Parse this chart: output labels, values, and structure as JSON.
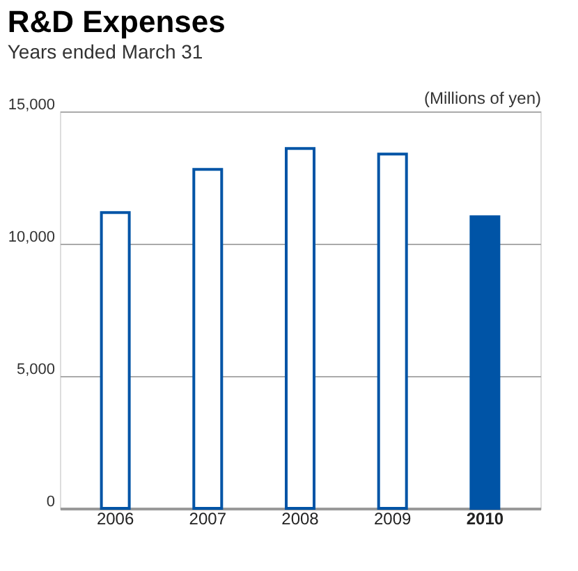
{
  "chart_data": {
    "type": "bar",
    "title": "R&D Expenses",
    "subtitle": "Years ended March 31",
    "ylabel": "(Millions of yen)",
    "categories": [
      "2006",
      "2007",
      "2008",
      "2009",
      "2010"
    ],
    "values": [
      11180,
      12810,
      13600,
      13390,
      11020
    ],
    "colors": [
      "#ffffff",
      "#ffffff",
      "#ffffff",
      "#ffffff",
      "#0054a6"
    ],
    "ylim": [
      0,
      15000
    ],
    "yticks": [
      0,
      {
        "value": 5000,
        "label": "5,000"
      },
      {
        "value": 10000,
        "label": "10,000"
      },
      {
        "value": 15000,
        "label": "15,000"
      }
    ],
    "grid": "y"
  }
}
